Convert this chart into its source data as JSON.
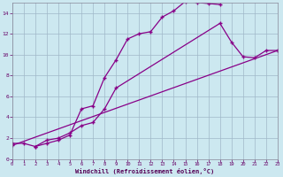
{
  "background_color": "#cce8f0",
  "grid_color": "#a0b8c8",
  "line_color": "#880088",
  "xlim": [
    0,
    23
  ],
  "ylim": [
    0,
    15
  ],
  "xlabel": "Windchill (Refroidissement éolien,°C)",
  "yticks": [
    0,
    2,
    4,
    6,
    8,
    10,
    12,
    14
  ],
  "xticks": [
    0,
    1,
    2,
    3,
    4,
    5,
    6,
    7,
    8,
    9,
    10,
    11,
    12,
    13,
    14,
    15,
    16,
    17,
    18,
    19,
    20,
    21,
    22,
    23
  ],
  "line1_x": [
    0,
    1,
    2,
    3,
    4,
    5,
    6,
    7,
    8,
    9,
    10,
    11,
    12,
    13,
    14,
    15,
    16,
    17,
    18
  ],
  "line1_y": [
    1.5,
    1.5,
    1.2,
    1.5,
    1.8,
    2.3,
    4.8,
    5.1,
    7.8,
    9.5,
    11.5,
    12.0,
    12.2,
    13.6,
    14.2,
    15.1,
    15.0,
    14.9,
    14.8
  ],
  "line2_x": [
    2,
    3,
    4,
    5,
    6,
    7,
    8,
    9,
    18,
    19,
    20,
    21,
    22,
    23
  ],
  "line2_y": [
    1.2,
    1.8,
    2.0,
    2.5,
    3.2,
    3.5,
    4.8,
    6.8,
    13.0,
    11.2,
    9.8,
    9.7,
    10.4,
    10.4
  ],
  "line3_x": [
    0,
    23
  ],
  "line3_y": [
    1.3,
    10.4
  ]
}
